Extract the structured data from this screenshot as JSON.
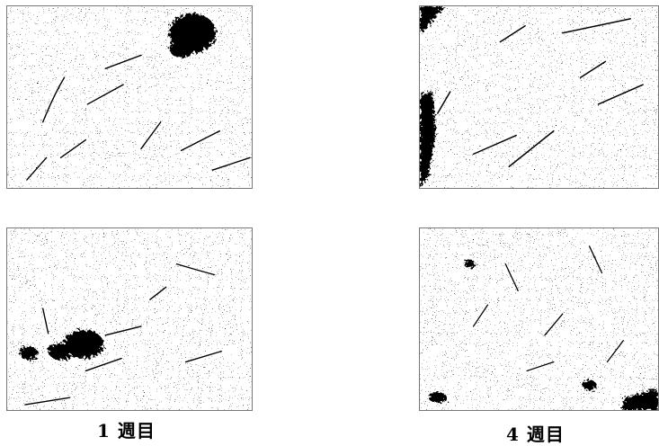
{
  "captions": {
    "left": "1 週目",
    "right": "4 週目"
  },
  "colors": {
    "background": "#ffffff",
    "micrograph_light": "#ffffff",
    "micrograph_dark": "#000000"
  }
}
